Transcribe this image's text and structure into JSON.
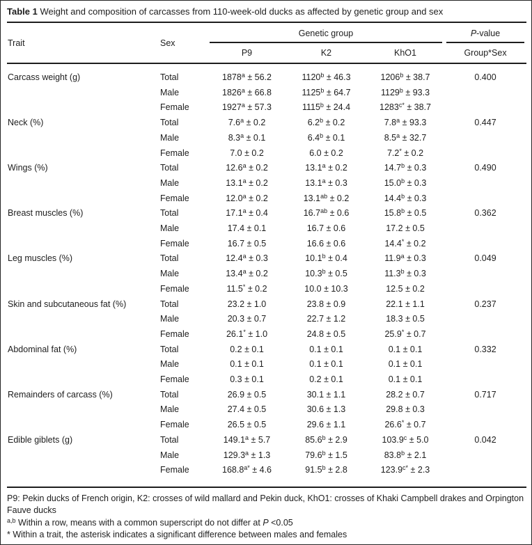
{
  "title": {
    "label": "Table 1",
    "text": " Weight and composition of carcasses from 110-week-old ducks as affected by genetic group and sex"
  },
  "header": {
    "trait": "Trait",
    "sex": "Sex",
    "genetic_group": "Genetic group",
    "p_value_italic": "P",
    "p_value_rest": "-value",
    "group_columns": [
      "P9",
      "K2",
      "KhO1"
    ],
    "interaction": "Group*Sex"
  },
  "groups": [
    {
      "trait": "Carcass weight (g)",
      "rows": [
        {
          "sex": "Total",
          "p": "0.400",
          "cells": [
            {
              "v": "1878",
              "s": "a",
              "e": "± 56.2"
            },
            {
              "v": "1120",
              "s": "b",
              "e": "± 46.3"
            },
            {
              "v": "1206",
              "s": "b",
              "e": "± 38.7"
            }
          ]
        },
        {
          "sex": "Male",
          "p": "",
          "cells": [
            {
              "v": "1826",
              "s": "a",
              "e": "± 66.8"
            },
            {
              "v": "1125",
              "s": "b",
              "e": "± 64.7"
            },
            {
              "v": "1129",
              "s": "b",
              "e": "± 93.3"
            }
          ]
        },
        {
          "sex": "Female",
          "p": "",
          "cells": [
            {
              "v": "1927",
              "s": "a",
              "e": "± 57.3"
            },
            {
              "v": "1115",
              "s": "b",
              "e": "± 24.4"
            },
            {
              "v": "1283",
              "s": "c*",
              "e": "± 38.7"
            }
          ]
        }
      ]
    },
    {
      "trait": "Neck (%)",
      "rows": [
        {
          "sex": "Total",
          "p": "0.447",
          "cells": [
            {
              "v": "7.6",
              "s": "a",
              "e": "± 0.2"
            },
            {
              "v": "6.2",
              "s": "b",
              "e": "± 0.2"
            },
            {
              "v": "7.8",
              "s": "a",
              "e": "± 93.3"
            }
          ]
        },
        {
          "sex": "Male",
          "p": "",
          "cells": [
            {
              "v": "8.3",
              "s": "a",
              "e": "± 0.1"
            },
            {
              "v": "6.4",
              "s": "b",
              "e": "± 0.1"
            },
            {
              "v": "8.5",
              "s": "a",
              "e": "± 32.7"
            }
          ]
        },
        {
          "sex": "Female",
          "p": "",
          "cells": [
            {
              "v": "7.0",
              "s": "",
              "e": "± 0.2"
            },
            {
              "v": "6.0",
              "s": "",
              "e": "± 0.2"
            },
            {
              "v": "7.2",
              "s": "*",
              "e": "± 0.2"
            }
          ]
        }
      ]
    },
    {
      "trait": "Wings (%)",
      "rows": [
        {
          "sex": "Total",
          "p": "0.490",
          "cells": [
            {
              "v": "12.6",
              "s": "a",
              "e": "± 0.2"
            },
            {
              "v": "13.1",
              "s": "a",
              "e": "± 0.2"
            },
            {
              "v": "14.7",
              "s": "b",
              "e": "± 0.3"
            }
          ]
        },
        {
          "sex": "Male",
          "p": "",
          "cells": [
            {
              "v": "13.1",
              "s": "a",
              "e": "± 0.2"
            },
            {
              "v": "13.1",
              "s": "a",
              "e": "± 0.3"
            },
            {
              "v": "15.0",
              "s": "b",
              "e": "± 0.3"
            }
          ]
        },
        {
          "sex": "Female",
          "p": "",
          "cells": [
            {
              "v": "12.0",
              "s": "a",
              "e": "± 0.2"
            },
            {
              "v": "13.1",
              "s": "ab",
              "e": "± 0.2"
            },
            {
              "v": "14.4",
              "s": "b",
              "e": "± 0.3"
            }
          ]
        }
      ]
    },
    {
      "trait": "Breast muscles (%)",
      "rows": [
        {
          "sex": "Total",
          "p": "0.362",
          "cells": [
            {
              "v": "17.1",
              "s": "a",
              "e": "± 0.4"
            },
            {
              "v": "16.7",
              "s": "ab",
              "e": "± 0.6"
            },
            {
              "v": "15.8",
              "s": "b",
              "e": "± 0.5"
            }
          ]
        },
        {
          "sex": "Male",
          "p": "",
          "cells": [
            {
              "v": "17.4",
              "s": "",
              "e": "± 0.1"
            },
            {
              "v": "16.7",
              "s": "",
              "e": "± 0.6"
            },
            {
              "v": "17.2",
              "s": "",
              "e": "± 0.5"
            }
          ]
        },
        {
          "sex": "Female",
          "p": "",
          "cells": [
            {
              "v": "16.7",
              "s": "",
              "e": "± 0.5"
            },
            {
              "v": "16.6",
              "s": "",
              "e": "± 0.6"
            },
            {
              "v": "14.4",
              "s": "*",
              "e": "± 0.2"
            }
          ]
        }
      ]
    },
    {
      "trait": "Leg muscles (%)",
      "rows": [
        {
          "sex": "Total",
          "p": "0.049",
          "cells": [
            {
              "v": "12.4",
              "s": "a",
              "e": "± 0.3"
            },
            {
              "v": "10.1",
              "s": "b",
              "e": "± 0.4"
            },
            {
              "v": "11.9",
              "s": "a",
              "e": "± 0.3"
            }
          ]
        },
        {
          "sex": "Male",
          "p": "",
          "cells": [
            {
              "v": "13.4",
              "s": "a",
              "e": "± 0.2"
            },
            {
              "v": "10.3",
              "s": "b",
              "e": "± 0.5"
            },
            {
              "v": "11.3",
              "s": "b",
              "e": "± 0.3"
            }
          ]
        },
        {
          "sex": "Female",
          "p": "",
          "cells": [
            {
              "v": "11.5",
              "s": "*",
              "e": "± 0.2"
            },
            {
              "v": "10.0",
              "s": "",
              "e": "± 10.3"
            },
            {
              "v": "12.5",
              "s": "",
              "e": "± 0.2"
            }
          ]
        }
      ]
    },
    {
      "trait": "Skin and subcutaneous fat (%)",
      "rows": [
        {
          "sex": "Total",
          "p": "0.237",
          "cells": [
            {
              "v": "23.2",
              "s": "",
              "e": "± 1.0"
            },
            {
              "v": "23.8",
              "s": "",
              "e": "± 0.9"
            },
            {
              "v": "22.1",
              "s": "",
              "e": "± 1.1"
            }
          ]
        },
        {
          "sex": "Male",
          "p": "",
          "cells": [
            {
              "v": "20.3",
              "s": "",
              "e": "± 0.7"
            },
            {
              "v": "22.7",
              "s": "",
              "e": "± 1.2"
            },
            {
              "v": "18.3",
              "s": "",
              "e": "± 0.5"
            }
          ]
        },
        {
          "sex": "Female",
          "p": "",
          "cells": [
            {
              "v": "26.1",
              "s": "*",
              "e": "± 1.0"
            },
            {
              "v": "24.8",
              "s": "",
              "e": "± 0.5"
            },
            {
              "v": "25.9",
              "s": "*",
              "e": "± 0.7"
            }
          ]
        }
      ]
    },
    {
      "trait": "Abdominal fat (%)",
      "rows": [
        {
          "sex": "Total",
          "p": "0.332",
          "cells": [
            {
              "v": "0.2",
              "s": "",
              "e": "± 0.1"
            },
            {
              "v": "0.1",
              "s": "",
              "e": "± 0.1"
            },
            {
              "v": "0.1",
              "s": "",
              "e": "± 0.1"
            }
          ]
        },
        {
          "sex": "Male",
          "p": "",
          "cells": [
            {
              "v": "0.1",
              "s": "",
              "e": "± 0.1"
            },
            {
              "v": "0.1",
              "s": "",
              "e": "± 0.1"
            },
            {
              "v": "0.1",
              "s": "",
              "e": "± 0.1"
            }
          ]
        },
        {
          "sex": "Female",
          "p": "",
          "cells": [
            {
              "v": "0.3",
              "s": "",
              "e": "± 0.1"
            },
            {
              "v": "0.2",
              "s": "",
              "e": "± 0.1"
            },
            {
              "v": "0.1",
              "s": "",
              "e": "± 0.1"
            }
          ]
        }
      ]
    },
    {
      "trait": "Remainders of carcass (%)",
      "rows": [
        {
          "sex": "Total",
          "p": "0.717",
          "cells": [
            {
              "v": "26.9",
              "s": "",
              "e": "± 0.5"
            },
            {
              "v": "30.1",
              "s": "",
              "e": "± 1.1"
            },
            {
              "v": "28.2",
              "s": "",
              "e": "± 0.7"
            }
          ]
        },
        {
          "sex": "Male",
          "p": "",
          "cells": [
            {
              "v": "27.4",
              "s": "",
              "e": "± 0.5"
            },
            {
              "v": "30.6",
              "s": "",
              "e": "± 1.3"
            },
            {
              "v": "29.8",
              "s": "",
              "e": "± 0.3"
            }
          ]
        },
        {
          "sex": "Female",
          "p": "",
          "cells": [
            {
              "v": "26.5",
              "s": "",
              "e": "± 0.5"
            },
            {
              "v": "29.6",
              "s": "",
              "e": "± 1.1"
            },
            {
              "v": "26.6",
              "s": "*",
              "e": "± 0.7"
            }
          ]
        }
      ]
    },
    {
      "trait": "Edible giblets (g)",
      "rows": [
        {
          "sex": "Total",
          "p": "0.042",
          "cells": [
            {
              "v": "149.1",
              "s": "a",
              "e": "± 5.7"
            },
            {
              "v": "85.6",
              "s": "b",
              "e": "± 2.9"
            },
            {
              "v": "103.9",
              "s": "c",
              "e": "± 5.0"
            }
          ]
        },
        {
          "sex": "Male",
          "p": "",
          "cells": [
            {
              "v": "129.3",
              "s": "a",
              "e": "± 1.3"
            },
            {
              "v": "79.6",
              "s": "b",
              "e": "± 1.5"
            },
            {
              "v": "83.8",
              "s": "b",
              "e": "± 2.1"
            }
          ]
        },
        {
          "sex": "Female",
          "p": "",
          "cells": [
            {
              "v": "168.8",
              "s": "a*",
              "e": "± 4.6"
            },
            {
              "v": "91.5",
              "s": "b",
              "e": "± 2.8"
            },
            {
              "v": "123.9",
              "s": "c*",
              "e": "± 2.3"
            }
          ]
        }
      ]
    }
  ],
  "footnotes": {
    "definitions": "P9: Pekin ducks of French origin, K2: crosses of wild mallard and Pekin duck, KhO1: crosses of Khaki Campbell drakes and Orpington Fauve ducks",
    "superscript_note": {
      "sup": "a,b",
      "before_p": " Within a row, means with a common superscript do not differ at ",
      "p": "P",
      "after_p": " <0.05"
    },
    "asterisk_note": "* Within a trait, the asterisk indicates a significant difference between males and females"
  }
}
